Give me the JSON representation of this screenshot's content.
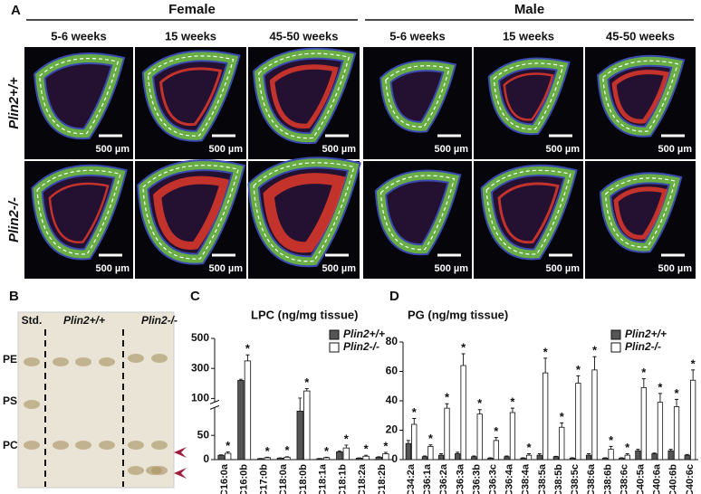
{
  "panel_a": {
    "label": "A",
    "groups": [
      {
        "title": "Female",
        "columns": [
          "5-6 weeks",
          "15 weeks",
          "45-50 weeks"
        ]
      },
      {
        "title": "Male",
        "columns": [
          "5-6 weeks",
          "15 weeks",
          "45-50 weeks"
        ]
      }
    ],
    "rows": [
      "Plin2+/+",
      "Plin2-/-"
    ],
    "scale_bar": "500 µm"
  },
  "panel_b": {
    "label": "B",
    "lanes": [
      "Std.",
      "Plin2+/+",
      "Plin2-/-"
    ],
    "bands": [
      "PE",
      "PS",
      "PC"
    ]
  },
  "chart_data": [
    {
      "type": "bar",
      "panel_label": "C",
      "title": "LPC (ng/mg tissue)",
      "categories": [
        "C16:0a",
        "C16:0b",
        "C17:0b",
        "C18:0a",
        "C18:0b",
        "C18:1a",
        "C18:1b",
        "C18:2a",
        "C18:2b"
      ],
      "series": [
        {
          "name": "Plin2+/+",
          "color": "#555555",
          "values": [
            9,
            220,
            2,
            3,
            100,
            2,
            16,
            3,
            5
          ],
          "errors": [
            1,
            8,
            0.5,
            0.5,
            3,
            0.5,
            2,
            0.5,
            1
          ]
        },
        {
          "name": "Plin2-/-",
          "color": "#ffffff",
          "values": [
            13,
            350,
            4,
            5,
            150,
            4,
            24,
            7,
            12
          ],
          "errors": [
            3,
            40,
            1,
            1,
            15,
            1,
            6,
            2,
            3
          ],
          "significant": [
            true,
            true,
            true,
            true,
            true,
            true,
            true,
            true,
            true
          ]
        }
      ],
      "significance_label": "*",
      "ylim": [
        0,
        500
      ],
      "y_break": 100,
      "yticks": [
        0,
        50,
        100,
        300,
        500
      ]
    },
    {
      "type": "bar",
      "panel_label": "D",
      "title": "PG (ng/mg tissue)",
      "categories": [
        "C34:2a",
        "C36:1a",
        "C36:2a",
        "C36:3a",
        "C36:3b",
        "C36:3c",
        "C36:4a",
        "C38:4a",
        "C38:5a",
        "C38:5b",
        "C38:5c",
        "C38:6a",
        "C38:6b",
        "C38:6c",
        "C40:5a",
        "C40:6a",
        "C40:6b",
        "C40:6c"
      ],
      "series": [
        {
          "name": "Plin2+/+",
          "color": "#555555",
          "values": [
            11,
            2,
            3,
            4,
            2,
            1,
            2,
            1,
            3,
            2,
            1,
            3,
            1,
            1,
            6,
            4,
            6,
            3
          ],
          "errors": [
            2,
            0.5,
            1,
            1,
            0.5,
            0.3,
            0.5,
            0.3,
            1,
            0.3,
            0.3,
            1,
            0.3,
            0.3,
            1,
            0.5,
            1,
            0.5
          ]
        },
        {
          "name": "Plin2-/-",
          "color": "#ffffff",
          "values": [
            24,
            9,
            35,
            64,
            31,
            13,
            32,
            3,
            59,
            22,
            52,
            61,
            7,
            3,
            49,
            39,
            36,
            54
          ],
          "errors": [
            4,
            1,
            3,
            8,
            3,
            2,
            3,
            1,
            10,
            3,
            5,
            9,
            2,
            1,
            6,
            6,
            5,
            7
          ],
          "significant": [
            true,
            true,
            true,
            true,
            true,
            true,
            true,
            true,
            true,
            true,
            true,
            true,
            true,
            true,
            true,
            true,
            true,
            true
          ]
        }
      ],
      "significance_label": "*",
      "ylim": [
        0,
        80
      ],
      "yticks": [
        0,
        20,
        40,
        60,
        80
      ]
    }
  ]
}
